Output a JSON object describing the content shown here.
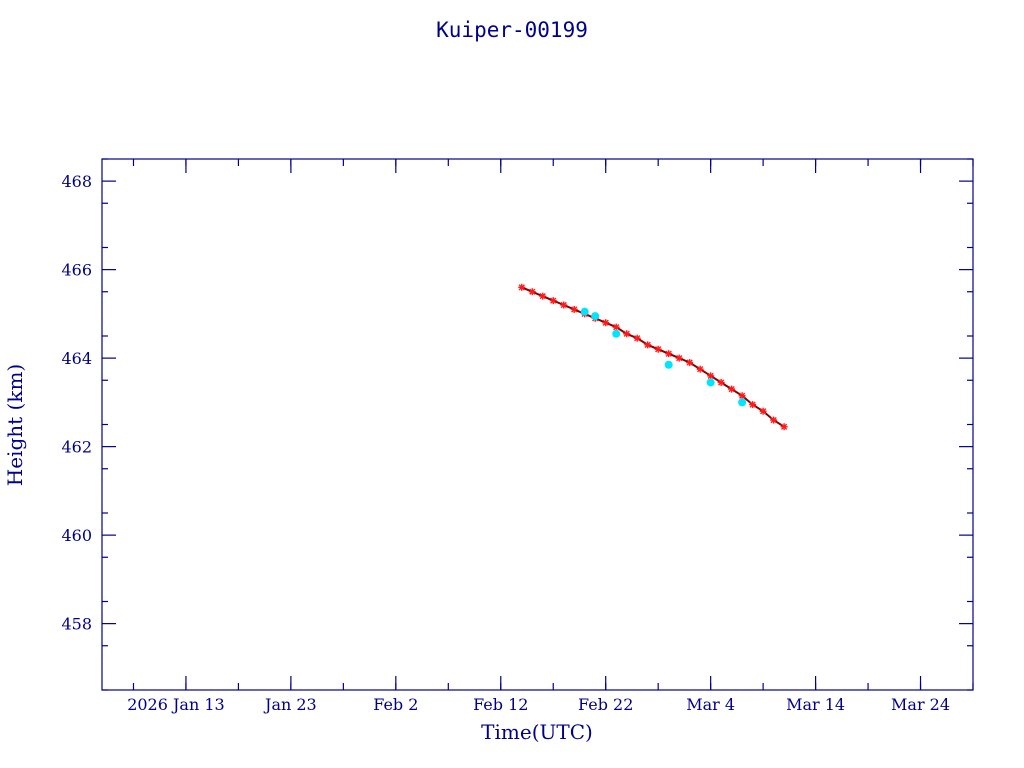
{
  "chart_data": {
    "type": "scatter",
    "title": "Kuiper-00199",
    "xlabel": "Time(UTC)",
    "ylabel": "Height (km)",
    "x_is_date": true,
    "xlim": [
      "2026-01-05",
      "2026-03-29"
    ],
    "ylim": [
      456.5,
      468.5
    ],
    "grid": false,
    "x_tick_labels": [
      {
        "label": "2026 Jan 13",
        "value": "2026-01-13"
      },
      {
        "label": "Jan 23",
        "value": "2026-01-23"
      },
      {
        "label": "Feb  2",
        "value": "2026-02-02"
      },
      {
        "label": "Feb 12",
        "value": "2026-02-12"
      },
      {
        "label": "Feb 22",
        "value": "2026-02-22"
      },
      {
        "label": "Mar  4",
        "value": "2026-03-04"
      },
      {
        "label": "Mar 14",
        "value": "2026-03-14"
      },
      {
        "label": "Mar 24",
        "value": "2026-03-24"
      }
    ],
    "y_ticks": [
      458,
      460,
      462,
      464,
      466,
      468
    ],
    "series": [
      {
        "color": "#ff1a1a",
        "marker": "star",
        "x": [
          "2026-02-14",
          "2026-02-15",
          "2026-02-16",
          "2026-02-17",
          "2026-02-18",
          "2026-02-19",
          "2026-02-20",
          "2026-02-21",
          "2026-02-22",
          "2026-02-23",
          "2026-02-24",
          "2026-02-25",
          "2026-02-26",
          "2026-02-27",
          "2026-02-28",
          "2026-03-01",
          "2026-03-02",
          "2026-03-03",
          "2026-03-04",
          "2026-03-05",
          "2026-03-06",
          "2026-03-07",
          "2026-03-08",
          "2026-03-09",
          "2026-03-10",
          "2026-03-11"
        ],
        "y": [
          465.6,
          465.5,
          465.4,
          465.3,
          465.2,
          465.1,
          465.0,
          464.9,
          464.8,
          464.7,
          464.55,
          464.45,
          464.3,
          464.2,
          464.1,
          464.0,
          463.9,
          463.75,
          463.6,
          463.45,
          463.3,
          463.15,
          462.95,
          462.8,
          462.6,
          462.45
        ]
      },
      {
        "color": "#00e5ff",
        "marker": "circle",
        "x": [
          "2026-02-20",
          "2026-02-21",
          "2026-02-23",
          "2026-02-28",
          "2026-03-04",
          "2026-03-07"
        ],
        "y": [
          465.05,
          464.95,
          464.55,
          463.85,
          463.45,
          463.0
        ]
      }
    ]
  }
}
